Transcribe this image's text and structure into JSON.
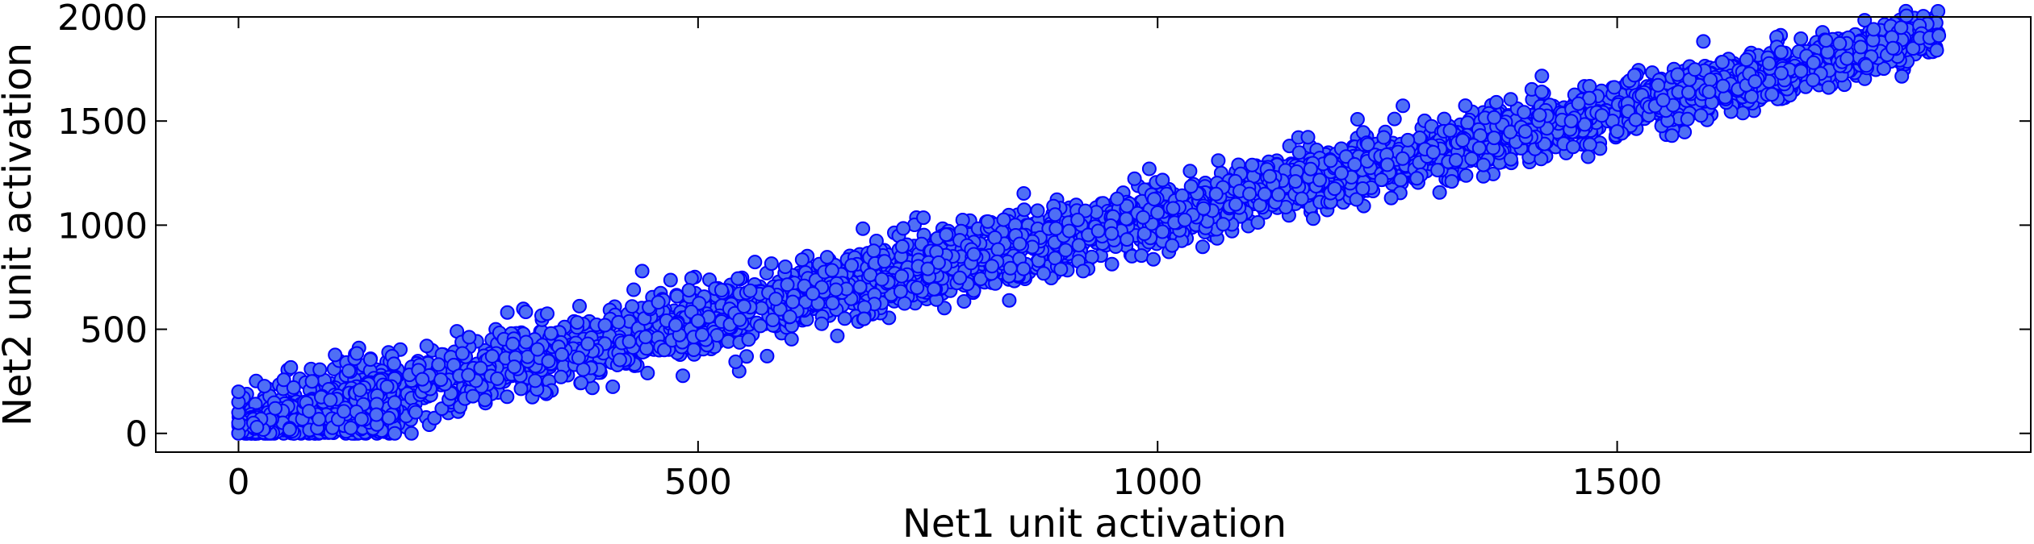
{
  "chart_data": {
    "type": "scatter",
    "title": "",
    "xlabel": "Net1 unit activation",
    "ylabel": "Net2 unit activation",
    "xlim": [
      -90,
      1950
    ],
    "ylim": [
      -90,
      2000
    ],
    "xticks": [
      0,
      500,
      1000,
      1500
    ],
    "yticks": [
      0,
      500,
      1000,
      1500,
      2000
    ],
    "xtick_labels": [
      "0",
      "500",
      "1000",
      "1500"
    ],
    "ytick_labels": [
      "0",
      "500",
      "1000",
      "1500",
      "2000"
    ],
    "grid": false,
    "legend": "none",
    "marker": "circle",
    "colors": {
      "marker_face": "#4f6ff5",
      "marker_edge": "#0000ff",
      "axes": "#000000"
    },
    "trend": {
      "slope": 1.02,
      "intercept": 25
    },
    "series": [
      {
        "points": [
          [
            0,
            0
          ],
          [
            0,
            50
          ],
          [
            0,
            100
          ],
          [
            0,
            150
          ],
          [
            0,
            200
          ],
          [
            20,
            30
          ],
          [
            40,
            120
          ],
          [
            60,
            220
          ],
          [
            80,
            250
          ],
          [
            100,
            160
          ],
          [
            120,
            300
          ],
          [
            150,
            90
          ],
          [
            170,
            0
          ],
          [
            200,
            260
          ],
          [
            250,
            280
          ],
          [
            300,
            320
          ],
          [
            340,
            480
          ],
          [
            380,
            430
          ],
          [
            430,
            690
          ],
          [
            500,
            540
          ],
          [
            550,
            610
          ],
          [
            600,
            560
          ],
          [
            650,
            690
          ],
          [
            700,
            740
          ],
          [
            750,
            790
          ],
          [
            800,
            860
          ],
          [
            850,
            910
          ],
          [
            900,
            880
          ],
          [
            950,
            960
          ],
          [
            1000,
            1060
          ],
          [
            1050,
            1080
          ],
          [
            1100,
            1150
          ],
          [
            1150,
            1210
          ],
          [
            1200,
            1250
          ],
          [
            1250,
            1290
          ],
          [
            1300,
            1350
          ],
          [
            1320,
            1210
          ],
          [
            1350,
            1370
          ],
          [
            1400,
            1450
          ],
          [
            1450,
            1500
          ],
          [
            1500,
            1450
          ],
          [
            1550,
            1600
          ],
          [
            1600,
            1640
          ],
          [
            1650,
            1690
          ],
          [
            1700,
            1740
          ],
          [
            1750,
            1800
          ],
          [
            1800,
            1850
          ],
          [
            1840,
            1900
          ],
          [
            1850,
            1910
          ]
        ]
      }
    ]
  }
}
